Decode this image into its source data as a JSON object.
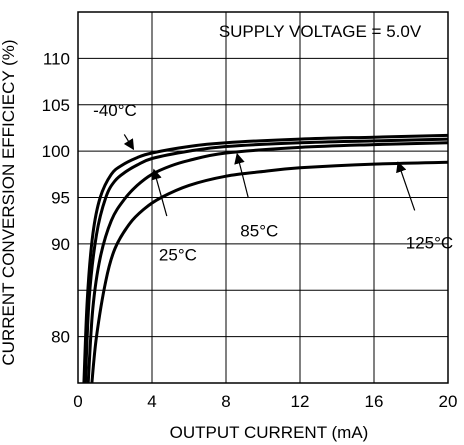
{
  "chart_data": {
    "type": "line",
    "title": "",
    "annotation": "SUPPLY VOLTAGE = 5.0V",
    "xlabel": "OUTPUT CURRENT (mA)",
    "ylabel": "CURRENT CONVERSION EFFICIECY (%)",
    "xlim": [
      0,
      20
    ],
    "ylim": [
      75,
      115
    ],
    "x_ticks": [
      0,
      4,
      8,
      12,
      16,
      20
    ],
    "x_tick_labels": [
      "0",
      "4",
      "8",
      "12",
      "16",
      "20"
    ],
    "y_ticks": [
      80,
      85,
      90,
      95,
      100,
      105,
      110
    ],
    "y_tick_labels": [
      "80",
      "",
      "90",
      "95",
      "100",
      "105",
      "110"
    ],
    "grid": true,
    "series": [
      {
        "name": "-40°C",
        "x": [
          0.32,
          0.5,
          0.8,
          1.2,
          1.8,
          2.4,
          3.2,
          4.0,
          6.0,
          8.0,
          12.0,
          16.0,
          20.0
        ],
        "y": [
          75,
          84,
          91,
          95,
          97.5,
          98.5,
          99.3,
          99.8,
          100.5,
          100.9,
          101.3,
          101.5,
          101.7
        ]
      },
      {
        "name": "25°C",
        "x": [
          0.4,
          0.6,
          1.0,
          1.5,
          2.0,
          2.6,
          3.2,
          4.0,
          6.0,
          8.0,
          12.0,
          16.0,
          20.0
        ],
        "y": [
          75,
          84,
          91,
          95,
          96.8,
          97.8,
          98.5,
          99.2,
          100.0,
          100.5,
          100.9,
          101.1,
          101.3
        ]
      },
      {
        "name": "85°C",
        "x": [
          0.55,
          0.8,
          1.2,
          1.8,
          2.5,
          3.2,
          4.0,
          5.0,
          6.0,
          8.0,
          12.0,
          16.0,
          20.0
        ],
        "y": [
          75,
          83,
          88.5,
          92.5,
          94.8,
          96.3,
          97.5,
          98.4,
          99.0,
          99.8,
          100.4,
          100.7,
          100.9
        ]
      },
      {
        "name": "125°C",
        "x": [
          0.75,
          1.0,
          1.5,
          2.0,
          2.8,
          3.6,
          4.5,
          6.0,
          8.0,
          10.0,
          12.0,
          16.0,
          20.0
        ],
        "y": [
          75,
          80,
          86,
          89.5,
          92.2,
          93.8,
          95.0,
          96.3,
          97.3,
          97.8,
          98.2,
          98.6,
          98.8
        ]
      }
    ],
    "labels": [
      {
        "text": "-40°C",
        "x": 2.0,
        "y": 103.8,
        "ax": 3.0,
        "ay": 100.2,
        "tx": 2.5,
        "ty": 101.8
      },
      {
        "text": "25°C",
        "x": 5.4,
        "y": 88.2,
        "ax": 4.1,
        "ay": 98.0,
        "tx": 4.8,
        "ty": 93
      },
      {
        "text": "85°C",
        "x": 9.8,
        "y": 90.8,
        "ax": 8.6,
        "ay": 99.7,
        "tx": 9.2,
        "ty": 95
      },
      {
        "text": "125°C",
        "x": 19.0,
        "y": 89.5,
        "ax": 17.3,
        "ay": 98.8,
        "tx": 18.2,
        "ty": 93.6
      }
    ]
  }
}
